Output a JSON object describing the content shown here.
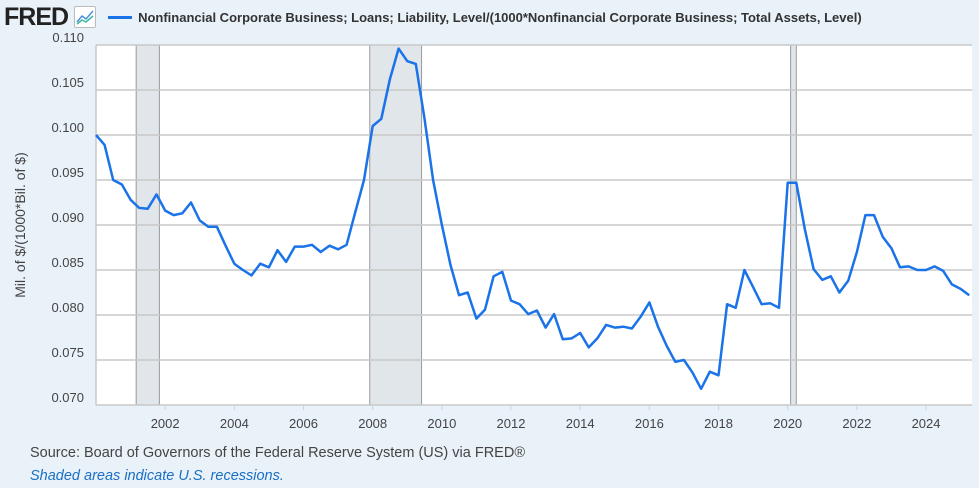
{
  "header": {
    "logo": "FRED",
    "logo_icon": "line-chart-icon",
    "legend_label": "Nonfinancial Corporate Business; Loans; Liability, Level/(1000*Nonfinancial Corporate Business; Total Assets, Level)"
  },
  "footer": {
    "source": "Source: Board of Governors of the Federal Reserve System (US) via FRED®",
    "note": "Shaded areas indicate U.S. recessions."
  },
  "chart_data": {
    "type": "line",
    "title": "",
    "xlabel": "",
    "ylabel": "Mil. of $/(1000*Bil. of $)",
    "ylim": [
      0.07,
      0.11
    ],
    "xlim": [
      "2000-01-01",
      "2025-05-01"
    ],
    "grid": true,
    "legend_placement": "top",
    "line_color": "#1a73e8",
    "recession_color": "#e1e6eb",
    "y_ticks": [
      "0.070",
      "0.075",
      "0.080",
      "0.085",
      "0.090",
      "0.095",
      "0.100",
      "0.105",
      "0.110"
    ],
    "x_ticks": [
      "2002",
      "2004",
      "2006",
      "2008",
      "2010",
      "2012",
      "2014",
      "2016",
      "2018",
      "2020",
      "2022",
      "2024"
    ],
    "recessions": [
      [
        "2001-03-01",
        "2001-11-01"
      ],
      [
        "2007-12-01",
        "2009-06-01"
      ],
      [
        "2020-02-01",
        "2020-04-01"
      ]
    ],
    "series": [
      {
        "name": "Nonfinancial Corporate Business; Loans; Liability, Level/(1000*Nonfinancial Corporate Business; Total Assets, Level)",
        "x": [
          "2000-01-01",
          "2000-04-01",
          "2000-07-01",
          "2000-10-01",
          "2001-01-01",
          "2001-04-01",
          "2001-07-01",
          "2001-10-01",
          "2002-01-01",
          "2002-04-01",
          "2002-07-01",
          "2002-10-01",
          "2003-01-01",
          "2003-04-01",
          "2003-07-01",
          "2003-10-01",
          "2004-01-01",
          "2004-04-01",
          "2004-07-01",
          "2004-10-01",
          "2005-01-01",
          "2005-04-01",
          "2005-07-01",
          "2005-10-01",
          "2006-01-01",
          "2006-04-01",
          "2006-07-01",
          "2006-10-01",
          "2007-01-01",
          "2007-04-01",
          "2007-07-01",
          "2007-10-01",
          "2008-01-01",
          "2008-04-01",
          "2008-07-01",
          "2008-10-01",
          "2009-01-01",
          "2009-04-01",
          "2009-07-01",
          "2009-10-01",
          "2010-01-01",
          "2010-04-01",
          "2010-07-01",
          "2010-10-01",
          "2011-01-01",
          "2011-04-01",
          "2011-07-01",
          "2011-10-01",
          "2012-01-01",
          "2012-04-01",
          "2012-07-01",
          "2012-10-01",
          "2013-01-01",
          "2013-04-01",
          "2013-07-01",
          "2013-10-01",
          "2014-01-01",
          "2014-04-01",
          "2014-07-01",
          "2014-10-01",
          "2015-01-01",
          "2015-04-01",
          "2015-07-01",
          "2015-10-01",
          "2016-01-01",
          "2016-04-01",
          "2016-07-01",
          "2016-10-01",
          "2017-01-01",
          "2017-04-01",
          "2017-07-01",
          "2017-10-01",
          "2018-01-01",
          "2018-04-01",
          "2018-07-01",
          "2018-10-01",
          "2019-01-01",
          "2019-04-01",
          "2019-07-01",
          "2019-10-01",
          "2020-01-01",
          "2020-04-01",
          "2020-07-01",
          "2020-10-01",
          "2021-01-01",
          "2021-04-01",
          "2021-07-01",
          "2021-10-01",
          "2022-01-01",
          "2022-04-01",
          "2022-07-01",
          "2022-10-01",
          "2023-01-01",
          "2023-04-01",
          "2023-07-01",
          "2023-10-01",
          "2024-01-01",
          "2024-04-01",
          "2024-07-01",
          "2024-10-01",
          "2025-01-01",
          "2025-04-01"
        ],
        "values": [
          0.1,
          0.0989,
          0.095,
          0.0945,
          0.0928,
          0.0919,
          0.0918,
          0.0934,
          0.0916,
          0.0911,
          0.0913,
          0.0925,
          0.0905,
          0.0898,
          0.0898,
          0.0877,
          0.0857,
          0.085,
          0.0844,
          0.0857,
          0.0853,
          0.0872,
          0.0859,
          0.0876,
          0.0876,
          0.0878,
          0.087,
          0.0877,
          0.0873,
          0.0878,
          0.0914,
          0.095,
          0.101,
          0.1018,
          0.1062,
          0.1096,
          0.1082,
          0.1079,
          0.1019,
          0.095,
          0.09,
          0.0856,
          0.0822,
          0.0825,
          0.0796,
          0.0806,
          0.0843,
          0.0848,
          0.0816,
          0.0812,
          0.0801,
          0.0805,
          0.0786,
          0.0801,
          0.0773,
          0.0774,
          0.078,
          0.0764,
          0.0774,
          0.0789,
          0.0786,
          0.0787,
          0.0785,
          0.0798,
          0.0814,
          0.0787,
          0.0766,
          0.0748,
          0.075,
          0.0736,
          0.0718,
          0.0737,
          0.0733,
          0.0812,
          0.0808,
          0.085,
          0.0831,
          0.0812,
          0.0813,
          0.0808,
          0.0947,
          0.0947,
          0.0895,
          0.0851,
          0.0839,
          0.0843,
          0.0825,
          0.0838,
          0.087,
          0.0911,
          0.0911,
          0.0887,
          0.0874,
          0.0853,
          0.0854,
          0.085,
          0.085,
          0.0854,
          0.0849,
          0.0834,
          0.0829,
          0.0822
        ]
      }
    ]
  }
}
